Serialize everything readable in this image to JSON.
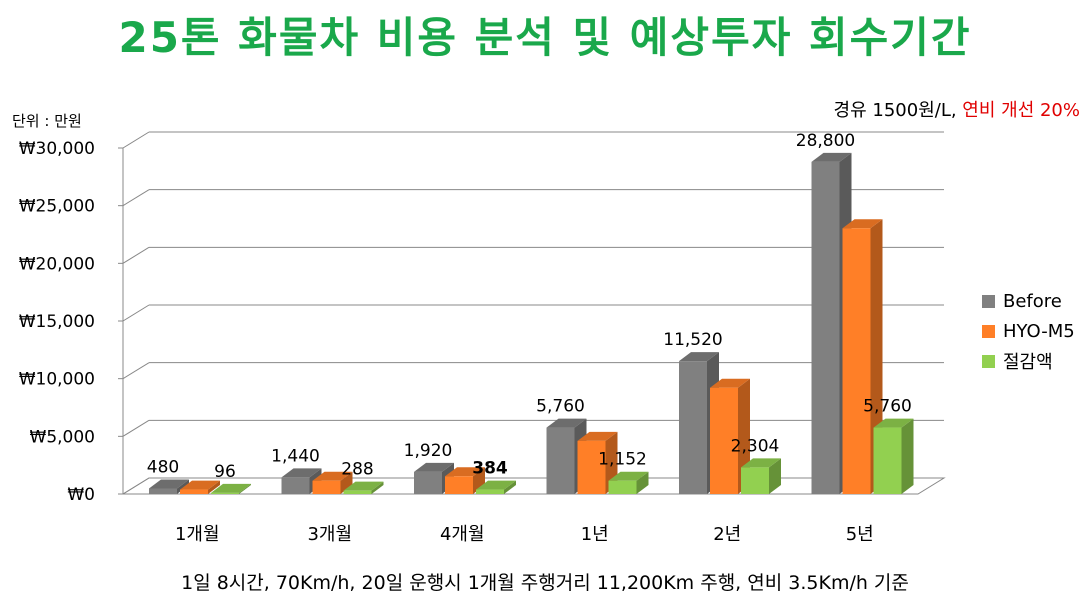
{
  "chart_data": {
    "type": "bar",
    "title": "25톤 화물차 비용 분석 및 예상투자 회수기간",
    "unit_label": "단위 : 만원",
    "condition": {
      "prefix": "경유 1500원/L, ",
      "highlight": "연비 개선 20%"
    },
    "footnote": "1일 8시간, 70Km/h, 20일 운행시 1개월 주행거리 11,200Km 주행, 연비 3.5Km/h 기준",
    "categories": [
      "1개월",
      "3개월",
      "4개월",
      "1년",
      "2년",
      "5년"
    ],
    "series": [
      {
        "name": "Before",
        "color": "#808080",
        "values": [
          480,
          1440,
          1920,
          5760,
          11520,
          28800
        ]
      },
      {
        "name": "HYO-M5",
        "color": "#ff7f27",
        "values": [
          384,
          1152,
          1536,
          4608,
          9216,
          23040
        ]
      },
      {
        "name": "절감액",
        "color": "#92d050",
        "values": [
          96,
          288,
          384,
          1152,
          2304,
          5760
        ]
      }
    ],
    "data_labels": [
      {
        "category": "1개월",
        "series": "Before",
        "text": "480",
        "color": "#000000"
      },
      {
        "category": "1개월",
        "series": "절감액",
        "text": "96",
        "color": "#000000"
      },
      {
        "category": "3개월",
        "series": "Before",
        "text": "1,440",
        "color": "#000000"
      },
      {
        "category": "3개월",
        "series": "절감액",
        "text": "288",
        "color": "#000000"
      },
      {
        "category": "4개월",
        "series": "Before",
        "text": "1,920",
        "color": "#000000"
      },
      {
        "category": "4개월",
        "series": "절감액",
        "text": "384",
        "color": "#e00000"
      },
      {
        "category": "1년",
        "series": "Before",
        "text": "5,760",
        "color": "#000000"
      },
      {
        "category": "1년",
        "series": "절감액",
        "text": "1,152",
        "color": "#000000"
      },
      {
        "category": "2년",
        "series": "Before",
        "text": "11,520",
        "color": "#000000"
      },
      {
        "category": "2년",
        "series": "절감액",
        "text": "2,304",
        "color": "#000000"
      },
      {
        "category": "5년",
        "series": "Before",
        "text": "28,800",
        "color": "#000000"
      },
      {
        "category": "5년",
        "series": "절감액",
        "text": "5,760",
        "color": "#000000"
      }
    ],
    "y_ticks": [
      0,
      5000,
      10000,
      15000,
      20000,
      25000,
      30000
    ],
    "y_tick_labels": [
      "₩0",
      "₩5,000",
      "₩10,000",
      "₩15,000",
      "₩20,000",
      "₩25,000",
      "₩30,000"
    ],
    "ylim": [
      0,
      30000
    ],
    "legend_position": "right"
  }
}
